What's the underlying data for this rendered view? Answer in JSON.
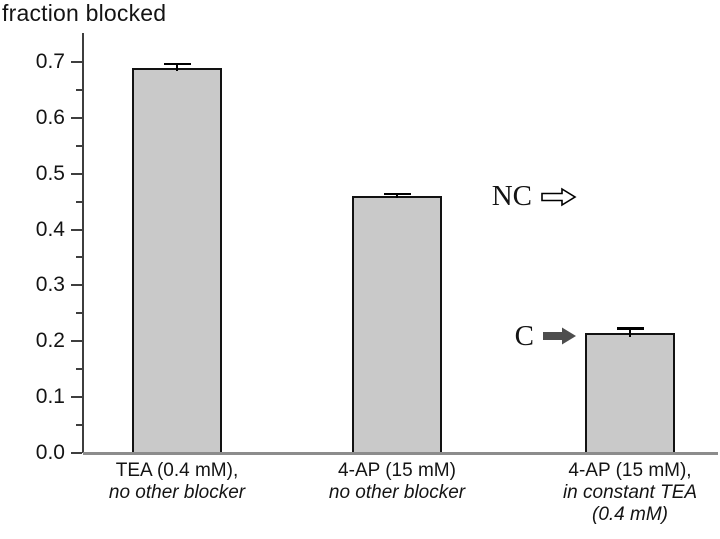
{
  "title": "fraction blocked",
  "colors": {
    "bar_fill": "#c9c9c9",
    "bar_edge": "#121212",
    "axis_line": "#3e3e3e",
    "baseline": "#8c8c8c",
    "tick": "#3e3e3e",
    "error_bar": "#000000",
    "open_arrow_fill": "#ffffff",
    "open_arrow_stroke": "#000000",
    "filled_arrow": "#4d4d4d",
    "text": "#141414"
  },
  "chart_data": {
    "type": "bar",
    "title": "fraction blocked",
    "ylabel": "fraction blocked",
    "xlabel": "",
    "ylim": [
      0,
      0.75
    ],
    "yticks": [
      0.0,
      0.1,
      0.2,
      0.3,
      0.4,
      0.5,
      0.6,
      0.7
    ],
    "minor_tick_step": 0.05,
    "grid": false,
    "legend_position": "none",
    "bars": [
      {
        "category_lines": [
          "TEA (0.4 mM),",
          "no other blocker"
        ],
        "value": 0.69,
        "error": 0.007
      },
      {
        "category_lines": [
          "4-AP (15 mM)",
          "no other blocker"
        ],
        "value": 0.46,
        "error": 0.004
      },
      {
        "category_lines": [
          "4-AP (15 mM),",
          "in constant TEA",
          "(0.4 mM)"
        ],
        "value": 0.215,
        "error": 0.008
      }
    ],
    "annotations": [
      {
        "text": "NC",
        "arrow_style": "open",
        "at_value": 0.46
      },
      {
        "text": "C",
        "arrow_style": "filled",
        "at_value": 0.21
      }
    ]
  }
}
